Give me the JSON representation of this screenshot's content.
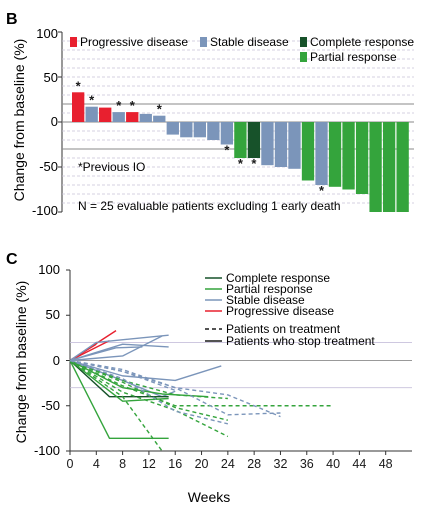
{
  "panel_b": {
    "letter": "B",
    "ylabel": "Change from baseline (%)",
    "yticks": [
      "100",
      "50",
      "0",
      "-50",
      "-100"
    ],
    "legend": [
      {
        "label": "Progressive disease",
        "color": "#e8202f"
      },
      {
        "label": "Stable disease",
        "color": "#7b95ba"
      },
      {
        "label": "Complete response",
        "color": "#17522a"
      },
      {
        "label": "Partial response",
        "color": "#34a43c"
      }
    ],
    "note_previous_io": "*Previous IO",
    "footnote": "N = 25 evaluable patients excluding 1 early death",
    "star_glyph": "*"
  },
  "panel_c": {
    "letter": "C",
    "ylabel": "Change from baseline (%)",
    "xlabel": "Weeks",
    "yticks": [
      "100",
      "50",
      "0",
      "-50",
      "-100"
    ],
    "xticks": [
      "0",
      "4",
      "8",
      "12",
      "16",
      "20",
      "24",
      "28",
      "32",
      "36",
      "40",
      "44",
      "48"
    ],
    "legend_colors": [
      {
        "label": "Complete response",
        "color": "#17522a"
      },
      {
        "label": "Partial response",
        "color": "#34a43c"
      },
      {
        "label": "Stable disease",
        "color": "#7b95ba"
      },
      {
        "label": "Progressive disease",
        "color": "#e8202f"
      }
    ],
    "legend_styles": [
      {
        "label": "Patients on treatment",
        "dash": true
      },
      {
        "label": "Patients who stop treatment",
        "dash": false
      }
    ]
  },
  "chart_data": [
    {
      "type": "bar",
      "ylabel": "Change from baseline (%)",
      "ylim": [
        -100,
        100
      ],
      "reference_lines": [
        20,
        -30
      ],
      "values": [
        33,
        17,
        16,
        11,
        11,
        9,
        7,
        -14,
        -17,
        -17,
        -20,
        -25,
        -40,
        -40,
        -48,
        -50,
        -52,
        -65,
        -70,
        -72,
        -75,
        -80,
        -100,
        -100,
        -100
      ],
      "colors": [
        "#e8202f",
        "#7b95ba",
        "#e8202f",
        "#7b95ba",
        "#e8202f",
        "#7b95ba",
        "#7b95ba",
        "#7b95ba",
        "#7b95ba",
        "#7b95ba",
        "#7b95ba",
        "#7b95ba",
        "#34a43c",
        "#17522a",
        "#7b95ba",
        "#7b95ba",
        "#7b95ba",
        "#34a43c",
        "#7b95ba",
        "#34a43c",
        "#34a43c",
        "#34a43c",
        "#34a43c",
        "#34a43c",
        "#34a43c"
      ],
      "previous_io": [
        true,
        true,
        false,
        true,
        true,
        false,
        true,
        false,
        false,
        false,
        false,
        true,
        true,
        true,
        false,
        false,
        false,
        false,
        true,
        false,
        false,
        false,
        false,
        false,
        false
      ]
    },
    {
      "type": "line",
      "xlabel": "Weeks",
      "ylabel": "Change from baseline (%)",
      "xlim": [
        0,
        52
      ],
      "ylim": [
        -100,
        100
      ],
      "reference_lines": [
        20,
        -30
      ],
      "series": [
        {
          "category": "Progressive disease",
          "color": "#e8202f",
          "dashed": false,
          "x": [
            0,
            7
          ],
          "y": [
            0,
            33
          ]
        },
        {
          "category": "Progressive disease",
          "color": "#e8202f",
          "dashed": false,
          "x": [
            0,
            6
          ],
          "y": [
            0,
            22
          ]
        },
        {
          "category": "Progressive disease",
          "color": "#e8202f",
          "dashed": false,
          "x": [
            0,
            4
          ],
          "y": [
            0,
            18
          ]
        },
        {
          "category": "Stable disease",
          "color": "#7b95ba",
          "dashed": false,
          "x": [
            0,
            4,
            15
          ],
          "y": [
            0,
            20,
            28
          ]
        },
        {
          "category": "Stable disease",
          "color": "#7b95ba",
          "dashed": false,
          "x": [
            0,
            8,
            15
          ],
          "y": [
            0,
            18,
            15
          ]
        },
        {
          "category": "Stable disease",
          "color": "#7b95ba",
          "dashed": false,
          "x": [
            0,
            7,
            11
          ],
          "y": [
            0,
            14,
            15
          ]
        },
        {
          "category": "Stable disease",
          "color": "#7b95ba",
          "dashed": false,
          "x": [
            0,
            8,
            14
          ],
          "y": [
            0,
            5,
            27
          ]
        },
        {
          "category": "Stable disease",
          "color": "#7b95ba",
          "dashed": false,
          "x": [
            0,
            8,
            16,
            23
          ],
          "y": [
            0,
            -17,
            -22,
            -6
          ]
        },
        {
          "category": "Stable disease",
          "color": "#7b95ba",
          "dashed": false,
          "x": [
            0,
            8,
            14,
            16
          ],
          "y": [
            0,
            -22,
            -40,
            -34
          ]
        },
        {
          "category": "Complete response",
          "color": "#17522a",
          "dashed": false,
          "x": [
            0,
            6,
            15
          ],
          "y": [
            0,
            -40,
            -40
          ]
        },
        {
          "category": "Partial response",
          "color": "#34a43c",
          "dashed": false,
          "x": [
            0,
            6,
            15
          ],
          "y": [
            0,
            -86,
            -86
          ]
        },
        {
          "category": "Partial response",
          "color": "#34a43c",
          "dashed": false,
          "x": [
            0,
            8,
            15
          ],
          "y": [
            0,
            -45,
            -42
          ]
        },
        {
          "category": "Partial response",
          "color": "#34a43c",
          "dashed": false,
          "x": [
            0,
            8,
            14,
            21
          ],
          "y": [
            0,
            -30,
            -37,
            -40
          ]
        },
        {
          "category": "Partial response",
          "color": "#34a43c",
          "dashed": true,
          "x": [
            0,
            8,
            16,
            40
          ],
          "y": [
            0,
            -28,
            -50,
            -50
          ]
        },
        {
          "category": "Partial response",
          "color": "#34a43c",
          "dashed": true,
          "x": [
            0,
            8,
            16,
            24
          ],
          "y": [
            0,
            -22,
            -38,
            -42
          ]
        },
        {
          "category": "Partial response",
          "color": "#34a43c",
          "dashed": true,
          "x": [
            0,
            8,
            16,
            24
          ],
          "y": [
            0,
            -24,
            -52,
            -66
          ]
        },
        {
          "category": "Partial response",
          "color": "#34a43c",
          "dashed": true,
          "x": [
            0,
            8,
            16,
            24
          ],
          "y": [
            0,
            -35,
            -55,
            -84
          ]
        },
        {
          "category": "Partial response",
          "color": "#34a43c",
          "dashed": true,
          "x": [
            0,
            8,
            14
          ],
          "y": [
            0,
            -40,
            -100
          ]
        },
        {
          "category": "Stable disease",
          "color": "#7b95ba",
          "dashed": true,
          "x": [
            0,
            8,
            16,
            24,
            32
          ],
          "y": [
            0,
            -12,
            -30,
            -38,
            -62
          ]
        },
        {
          "category": "Stable disease",
          "color": "#7b95ba",
          "dashed": true,
          "x": [
            0,
            8,
            16
          ],
          "y": [
            0,
            -12,
            -33
          ]
        },
        {
          "category": "Stable disease",
          "color": "#7b95ba",
          "dashed": true,
          "x": [
            0,
            8,
            16,
            24,
            32
          ],
          "y": [
            0,
            -10,
            -30,
            -60,
            -58
          ]
        },
        {
          "category": "Stable disease",
          "color": "#7b95ba",
          "dashed": true,
          "x": [
            0,
            8,
            16,
            24
          ],
          "y": [
            0,
            -20,
            -56,
            -70
          ]
        }
      ]
    }
  ]
}
